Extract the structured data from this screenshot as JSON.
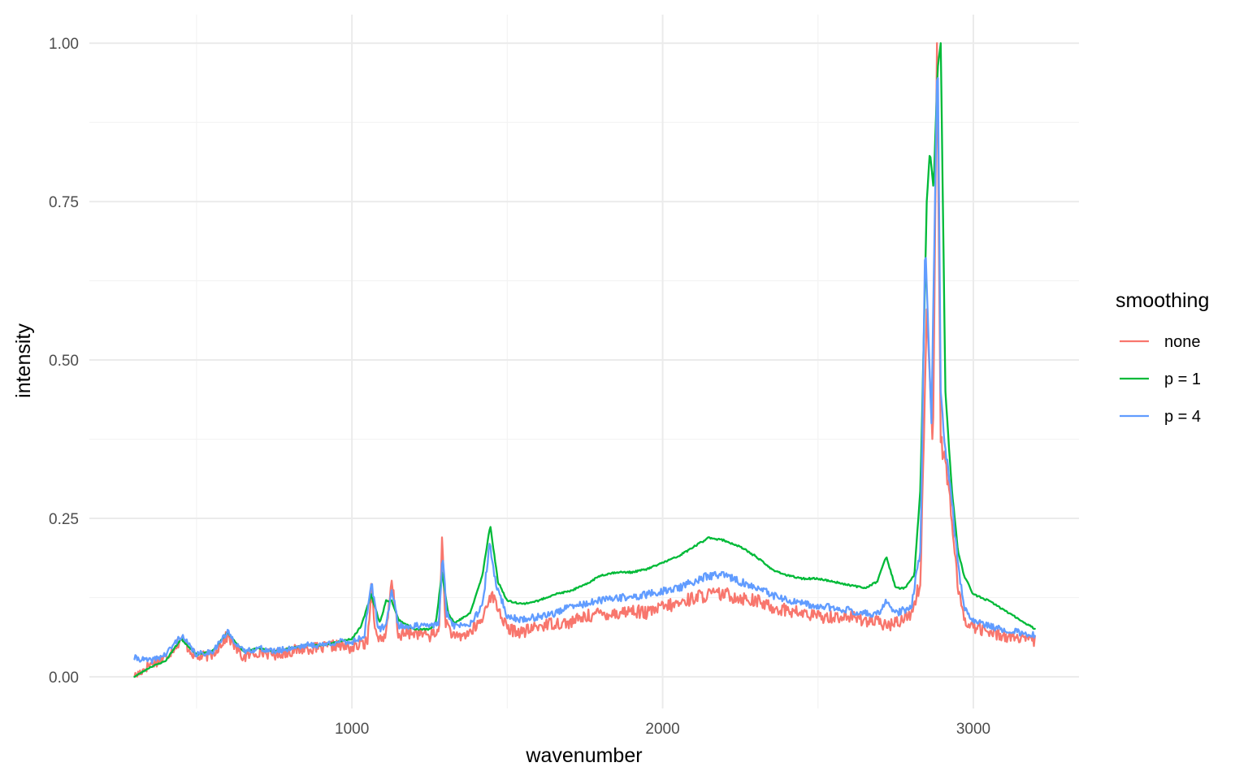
{
  "chart_data": {
    "type": "line",
    "xlabel": "wavenumber",
    "ylabel": "intensity",
    "xlim": [
      155,
      3340
    ],
    "ylim": [
      -0.05,
      1.045
    ],
    "x_ticks": [
      1000,
      2000,
      3000
    ],
    "x_tick_labels": [
      "1000",
      "2000",
      "3000"
    ],
    "x_minor_ticks": [
      500,
      1500,
      2500
    ],
    "y_ticks": [
      0,
      0.25,
      0.5,
      0.75,
      1.0
    ],
    "y_tick_labels": [
      "0.00",
      "0.25",
      "0.50",
      "0.75",
      "1.00"
    ],
    "y_minor_ticks": [
      0.125,
      0.375,
      0.625,
      0.875
    ],
    "grid": true,
    "legend": {
      "title": "smoothing",
      "placement": "right",
      "entries": [
        "none",
        "p = 1",
        "p = 4"
      ]
    },
    "series": [
      {
        "name": "none",
        "color": "#F8766D",
        "x": [
          300,
          350,
          400,
          450,
          500,
          550,
          600,
          650,
          700,
          750,
          800,
          850,
          900,
          950,
          1000,
          1050,
          1062,
          1080,
          1110,
          1128,
          1150,
          1200,
          1250,
          1280,
          1290,
          1300,
          1330,
          1380,
          1420,
          1443,
          1460,
          1500,
          1550,
          1600,
          1650,
          1700,
          1750,
          1800,
          1850,
          1900,
          1950,
          2000,
          2050,
          2100,
          2150,
          2200,
          2250,
          2300,
          2350,
          2400,
          2450,
          2500,
          2550,
          2600,
          2650,
          2700,
          2720,
          2750,
          2800,
          2830,
          2850,
          2870,
          2883,
          2895,
          2910,
          2930,
          2950,
          2970,
          3000,
          3050,
          3100,
          3150,
          3200
        ],
        "y": [
          0.0,
          0.02,
          0.03,
          0.06,
          0.03,
          0.035,
          0.065,
          0.03,
          0.04,
          0.035,
          0.04,
          0.045,
          0.045,
          0.05,
          0.045,
          0.055,
          0.14,
          0.06,
          0.065,
          0.15,
          0.065,
          0.07,
          0.065,
          0.07,
          0.22,
          0.09,
          0.06,
          0.07,
          0.09,
          0.13,
          0.12,
          0.075,
          0.07,
          0.08,
          0.085,
          0.085,
          0.095,
          0.1,
          0.1,
          0.105,
          0.1,
          0.11,
          0.115,
          0.125,
          0.13,
          0.13,
          0.125,
          0.12,
          0.11,
          0.105,
          0.1,
          0.095,
          0.095,
          0.095,
          0.09,
          0.085,
          0.08,
          0.085,
          0.1,
          0.15,
          0.58,
          0.36,
          1.0,
          0.37,
          0.34,
          0.25,
          0.14,
          0.09,
          0.08,
          0.07,
          0.065,
          0.06,
          0.055
        ]
      },
      {
        "name": "p = 1",
        "color": "#00BA38",
        "x": [
          300,
          350,
          400,
          450,
          500,
          550,
          600,
          650,
          700,
          750,
          800,
          850,
          900,
          950,
          1000,
          1030,
          1062,
          1090,
          1110,
          1128,
          1150,
          1200,
          1250,
          1270,
          1290,
          1310,
          1330,
          1380,
          1420,
          1445,
          1470,
          1500,
          1550,
          1600,
          1650,
          1700,
          1750,
          1800,
          1850,
          1900,
          1950,
          2000,
          2050,
          2100,
          2150,
          2200,
          2250,
          2300,
          2350,
          2400,
          2450,
          2500,
          2550,
          2600,
          2650,
          2690,
          2720,
          2750,
          2780,
          2810,
          2830,
          2850,
          2860,
          2872,
          2885,
          2895,
          2910,
          2930,
          2950,
          2970,
          3000,
          3050,
          3100,
          3150,
          3200
        ],
        "y": [
          0.0,
          0.015,
          0.025,
          0.06,
          0.035,
          0.04,
          0.07,
          0.04,
          0.045,
          0.04,
          0.045,
          0.05,
          0.05,
          0.055,
          0.06,
          0.08,
          0.13,
          0.085,
          0.12,
          0.12,
          0.09,
          0.075,
          0.075,
          0.085,
          0.165,
          0.1,
          0.085,
          0.1,
          0.16,
          0.24,
          0.15,
          0.12,
          0.115,
          0.12,
          0.13,
          0.135,
          0.145,
          0.16,
          0.165,
          0.165,
          0.17,
          0.18,
          0.19,
          0.205,
          0.22,
          0.215,
          0.205,
          0.19,
          0.17,
          0.16,
          0.155,
          0.155,
          0.15,
          0.145,
          0.14,
          0.15,
          0.19,
          0.14,
          0.14,
          0.16,
          0.3,
          0.75,
          0.83,
          0.77,
          0.96,
          1.0,
          0.45,
          0.3,
          0.2,
          0.16,
          0.13,
          0.12,
          0.105,
          0.09,
          0.075
        ]
      },
      {
        "name": "p = 4",
        "color": "#619CFF",
        "x": [
          300,
          350,
          400,
          450,
          500,
          550,
          600,
          650,
          700,
          750,
          800,
          850,
          900,
          950,
          1000,
          1040,
          1062,
          1085,
          1110,
          1128,
          1150,
          1200,
          1250,
          1280,
          1292,
          1305,
          1330,
          1380,
          1420,
          1443,
          1462,
          1500,
          1550,
          1600,
          1650,
          1700,
          1750,
          1800,
          1850,
          1900,
          1950,
          2000,
          2050,
          2100,
          2150,
          2200,
          2250,
          2300,
          2350,
          2400,
          2450,
          2500,
          2550,
          2600,
          2650,
          2700,
          2720,
          2750,
          2800,
          2830,
          2845,
          2865,
          2885,
          2895,
          2910,
          2930,
          2950,
          2970,
          3000,
          3050,
          3100,
          3150,
          3200
        ],
        "y": [
          0.03,
          0.025,
          0.035,
          0.065,
          0.035,
          0.04,
          0.07,
          0.04,
          0.045,
          0.04,
          0.045,
          0.05,
          0.05,
          0.055,
          0.055,
          0.065,
          0.15,
          0.075,
          0.08,
          0.14,
          0.08,
          0.08,
          0.08,
          0.085,
          0.19,
          0.1,
          0.08,
          0.085,
          0.11,
          0.21,
          0.15,
          0.095,
          0.09,
          0.095,
          0.1,
          0.11,
          0.115,
          0.12,
          0.125,
          0.125,
          0.13,
          0.135,
          0.14,
          0.15,
          0.16,
          0.16,
          0.15,
          0.14,
          0.13,
          0.12,
          0.115,
          0.11,
          0.11,
          0.105,
          0.1,
          0.1,
          0.12,
          0.1,
          0.11,
          0.2,
          0.69,
          0.4,
          1.0,
          0.45,
          0.36,
          0.28,
          0.18,
          0.11,
          0.09,
          0.08,
          0.075,
          0.07,
          0.065
        ]
      }
    ]
  }
}
